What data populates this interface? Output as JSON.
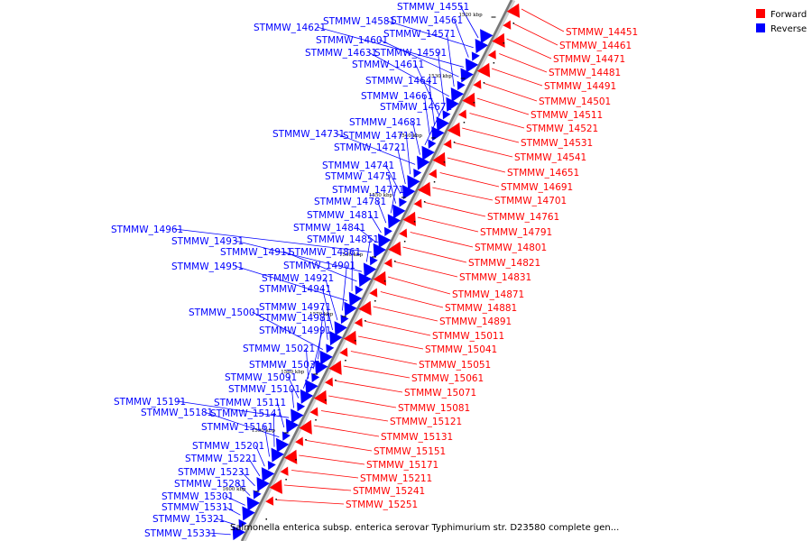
{
  "legend": {
    "forward_label": "Forward",
    "reverse_label": "Reverse",
    "forward_color": "#ff0000",
    "reverse_color": "#0000ff"
  },
  "caption": "Salmonella enterica subsp. enterica serovar Typhimurium str. D23580 complete gen...",
  "scale_ticks": [
    "1520 kbp",
    "1530 kbp",
    "1540 kbp",
    "1550 kbp",
    "1560 kbp",
    "1570 kbp",
    "1580 kbp",
    "1590 kbp",
    "1600 kbp"
  ],
  "reverse_genes": [
    "STMMW_14551",
    "STMMW_14581",
    "STMMW_14561",
    "STMMW_14621",
    "STMMW_14601",
    "STMMW_14571",
    "STMMW_14631",
    "STMMW_14591",
    "STMMW_14611",
    "STMMW_14641",
    "STMMW_14661",
    "STMMW_14671",
    "STMMW_14681",
    "STMMW_14731",
    "STMMW_14711",
    "STMMW_14721",
    "STMMW_14741",
    "STMMW_14751",
    "STMMW_14771",
    "STMMW_14781",
    "STMMW_14811",
    "STMMW_14841",
    "STMMW_14961",
    "STMMW_14851",
    "STMMW_14931",
    "STMMW_14911",
    "STMMW_14861",
    "STMMW_14951",
    "STMMW_14901",
    "STMMW_14921",
    "STMMW_14941",
    "STMMW_14971",
    "STMMW_15001",
    "STMMW_14981",
    "STMMW_14991",
    "STMMW_15021",
    "STMMW_15031",
    "STMMW_15091",
    "STMMW_15101",
    "STMMW_15191",
    "STMMW_15111",
    "STMMW_15181",
    "STMMW_15141",
    "STMMW_15161",
    "STMMW_15201",
    "STMMW_15221",
    "STMMW_15231",
    "STMMW_15281",
    "STMMW_15301",
    "STMMW_15311",
    "STMMW_15321",
    "STMMW_15331"
  ],
  "forward_genes": [
    "STMMW_14451",
    "STMMW_14461",
    "STMMW_14471",
    "STMMW_14481",
    "STMMW_14491",
    "STMMW_14501",
    "STMMW_14511",
    "STMMW_14521",
    "STMMW_14531",
    "STMMW_14541",
    "STMMW_14651",
    "STMMW_14691",
    "STMMW_14701",
    "STMMW_14761",
    "STMMW_14791",
    "STMMW_14801",
    "STMMW_14821",
    "STMMW_14831",
    "STMMW_14871",
    "STMMW_14881",
    "STMMW_14891",
    "STMMW_15011",
    "STMMW_15041",
    "STMMW_15051",
    "STMMW_15061",
    "STMMW_15071",
    "STMMW_15081",
    "STMMW_15121",
    "STMMW_15131",
    "STMMW_15151",
    "STMMW_15171",
    "STMMW_15211",
    "STMMW_15241",
    "STMMW_15251"
  ]
}
